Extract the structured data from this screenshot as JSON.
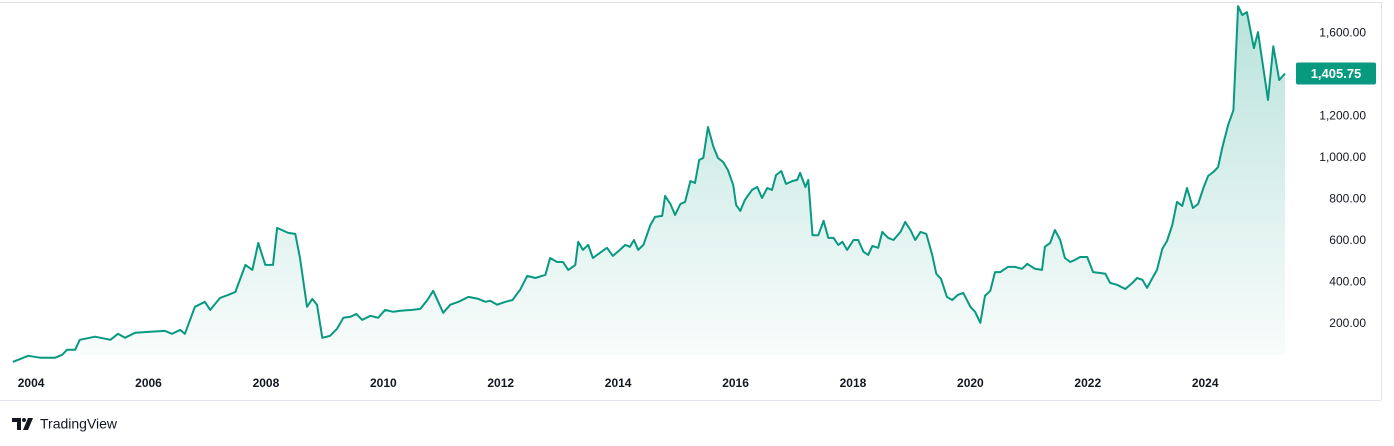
{
  "chart_data": {
    "type": "area",
    "x": [
      2003.69,
      2003.95,
      2004.15,
      2004.41,
      2004.53,
      2004.61,
      2004.75,
      2004.83,
      2005.09,
      2005.35,
      2005.48,
      2005.6,
      2005.77,
      2006.03,
      2006.28,
      2006.4,
      2006.54,
      2006.62,
      2006.79,
      2006.96,
      2007.05,
      2007.22,
      2007.36,
      2007.48,
      2007.65,
      2007.77,
      2007.87,
      2007.99,
      2008.12,
      2008.19,
      2008.38,
      2008.5,
      2008.58,
      2008.7,
      2008.79,
      2008.87,
      2008.96,
      2009.09,
      2009.21,
      2009.32,
      2009.44,
      2009.54,
      2009.64,
      2009.78,
      2009.91,
      2010.03,
      2010.17,
      2010.29,
      2010.49,
      2010.63,
      2010.75,
      2010.85,
      2011.02,
      2011.14,
      2011.28,
      2011.45,
      2011.62,
      2011.74,
      2011.82,
      2011.94,
      2012.08,
      2012.2,
      2012.33,
      2012.45,
      2012.59,
      2012.76,
      2012.84,
      2012.96,
      2013.06,
      2013.15,
      2013.27,
      2013.32,
      2013.4,
      2013.49,
      2013.57,
      2013.69,
      2013.81,
      2013.91,
      2014.03,
      2014.12,
      2014.2,
      2014.27,
      2014.34,
      2014.43,
      2014.55,
      2014.63,
      2014.75,
      2014.8,
      2014.89,
      2014.97,
      2015.06,
      2015.14,
      2015.23,
      2015.31,
      2015.38,
      2015.45,
      2015.53,
      2015.62,
      2015.7,
      2015.79,
      2015.87,
      2015.96,
      2016.01,
      2016.08,
      2016.16,
      2016.28,
      2016.37,
      2016.45,
      2016.54,
      2016.62,
      2016.69,
      2016.78,
      2016.86,
      2016.97,
      2017.05,
      2017.1,
      2017.19,
      2017.24,
      2017.31,
      2017.41,
      2017.5,
      2017.58,
      2017.67,
      2017.75,
      2017.82,
      2017.9,
      2018.01,
      2018.09,
      2018.18,
      2018.26,
      2018.33,
      2018.43,
      2018.5,
      2018.6,
      2018.69,
      2018.81,
      2018.89,
      2018.98,
      2019.06,
      2019.15,
      2019.25,
      2019.35,
      2019.42,
      2019.5,
      2019.6,
      2019.69,
      2019.79,
      2019.88,
      2020.0,
      2020.08,
      2020.17,
      2020.25,
      2020.34,
      2020.42,
      2020.51,
      2020.64,
      2020.76,
      2020.88,
      2020.97,
      2021.1,
      2021.22,
      2021.27,
      2021.36,
      2021.44,
      2021.53,
      2021.61,
      2021.7,
      2021.78,
      2021.87,
      2021.99,
      2022.09,
      2022.21,
      2022.3,
      2022.38,
      2022.5,
      2022.64,
      2022.76,
      2022.84,
      2022.93,
      2023.01,
      2023.1,
      2023.18,
      2023.27,
      2023.35,
      2023.44,
      2023.52,
      2023.61,
      2023.69,
      2023.79,
      2023.88,
      2023.97,
      2024.05,
      2024.14,
      2024.22,
      2024.29,
      2024.39,
      2024.48,
      2024.56,
      2024.63,
      2024.71,
      2024.83,
      2024.9,
      2024.99,
      2025.07,
      2025.16,
      2025.26,
      2025.36
    ],
    "values": [
      17,
      46,
      37,
      37,
      51,
      75,
      75,
      123,
      138,
      123,
      152,
      133,
      157,
      162,
      166,
      152,
      171,
      152,
      282,
      306,
      267,
      325,
      340,
      354,
      484,
      460,
      590,
      484,
      484,
      662,
      638,
      633,
      517,
      282,
      320,
      292,
      133,
      142,
      176,
      229,
      234,
      248,
      219,
      239,
      229,
      267,
      258,
      263,
      267,
      272,
      315,
      359,
      253,
      292,
      306,
      330,
      320,
      306,
      311,
      292,
      306,
      315,
      364,
      431,
      421,
      436,
      517,
      498,
      498,
      460,
      484,
      595,
      556,
      580,
      517,
      542,
      566,
      527,
      556,
      580,
      571,
      604,
      556,
      580,
      676,
      715,
      720,
      816,
      777,
      724,
      777,
      787,
      888,
      878,
      989,
      999,
      1148,
      1056,
      999,
      979,
      941,
      869,
      773,
      744,
      797,
      845,
      859,
      806,
      854,
      845,
      917,
      936,
      874,
      888,
      893,
      927,
      859,
      893,
      627,
      627,
      696,
      614,
      614,
      580,
      595,
      556,
      604,
      604,
      547,
      532,
      575,
      566,
      643,
      614,
      604,
      643,
      691,
      652,
      604,
      643,
      633,
      532,
      441,
      417,
      330,
      315,
      340,
      349,
      282,
      258,
      205,
      335,
      359,
      449,
      449,
      474,
      474,
      465,
      489,
      465,
      460,
      571,
      590,
      652,
      604,
      517,
      498,
      508,
      522,
      522,
      449,
      445,
      441,
      397,
      388,
      368,
      397,
      421,
      412,
      373,
      421,
      460,
      561,
      599,
      676,
      787,
      768,
      854,
      758,
      777,
      854,
      912,
      931,
      955,
      1047,
      1157,
      1229,
      1730,
      1687,
      1701,
      1528,
      1605,
      1432,
      1278,
      1537,
      1374,
      1405.75
    ],
    "value_labels": [
      null,
      null,
      null,
      null,
      null,
      null,
      null,
      null,
      null,
      null,
      null,
      null,
      null,
      null,
      null,
      null,
      null,
      null,
      null,
      null,
      null,
      null,
      null,
      null,
      null,
      null,
      null,
      null,
      null,
      null,
      null,
      null,
      null,
      null,
      null,
      null,
      null,
      null,
      null,
      null,
      null,
      null,
      null,
      null,
      null,
      null,
      null,
      null,
      null,
      null,
      null,
      null,
      null,
      null,
      null,
      null,
      null,
      null,
      null,
      null,
      null,
      null,
      null,
      null,
      null,
      null,
      null,
      null,
      null,
      null,
      null,
      null,
      null,
      null,
      null,
      null,
      null,
      null,
      null,
      null,
      null,
      null,
      null,
      null,
      null,
      null,
      null,
      null,
      null,
      null,
      null,
      null,
      null,
      null,
      null,
      null,
      null,
      null,
      null,
      null,
      null,
      null,
      null,
      null,
      null,
      null,
      null,
      null,
      null,
      null,
      null,
      null,
      null,
      null,
      null,
      null,
      null,
      null,
      null,
      null,
      null,
      null,
      null,
      null,
      null,
      null,
      null,
      null,
      null,
      null,
      null,
      null,
      null,
      null,
      null,
      null,
      null,
      null,
      null,
      null,
      null,
      null,
      null,
      null,
      null,
      null,
      null,
      null,
      null,
      null,
      null,
      null,
      null,
      null,
      null,
      null,
      null,
      null,
      null,
      null,
      null,
      null,
      null,
      null,
      null,
      null,
      null,
      null,
      null,
      null,
      null,
      null,
      null,
      null,
      null,
      null,
      null,
      null,
      null,
      null,
      null,
      null,
      null,
      null,
      null,
      null,
      null,
      null,
      null,
      null,
      null,
      null,
      null,
      null,
      null,
      null,
      null,
      null,
      null,
      null,
      null,
      null,
      null,
      null,
      null,
      null,
      "1,405.75"
    ],
    "color": "#089981",
    "xlim": [
      2003.47,
      2025.53
    ],
    "xticks": [
      2004,
      2006,
      2008,
      2010,
      2012,
      2014,
      2016,
      2018,
      2020,
      2022,
      2024
    ],
    "ylim": [
      50,
      1745
    ],
    "yticks": [
      {
        "value": 200,
        "label": "200.00"
      },
      {
        "value": 400,
        "label": "400.00"
      },
      {
        "value": 600,
        "label": "600.00"
      },
      {
        "value": 800,
        "label": "800.00"
      },
      {
        "value": 1000,
        "label": "1,000.00"
      },
      {
        "value": 1200,
        "label": "1,200.00"
      },
      {
        "value": 1400,
        "label": "1,400.00"
      },
      {
        "value": 1600,
        "label": "1,600.00"
      }
    ],
    "grid": false
  },
  "brand": "TradingView"
}
